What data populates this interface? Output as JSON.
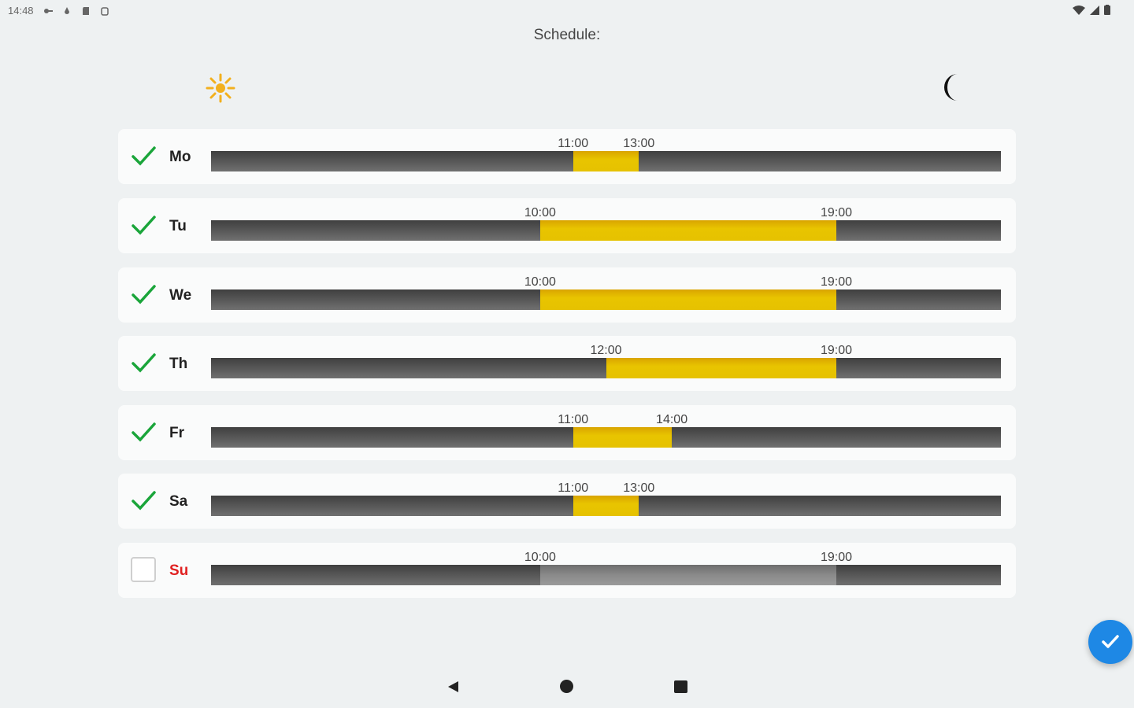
{
  "status_bar": {
    "time": "14:48",
    "left_icons": [
      "key-icon",
      "drop-icon",
      "sd-card-icon",
      "android-icon"
    ],
    "right_icons": [
      "wifi-icon",
      "cell-signal-icon",
      "battery-icon"
    ]
  },
  "title": "Schedule:",
  "header_icons": {
    "left": "sun-icon",
    "right": "moon-icon"
  },
  "colors": {
    "active": "#e6c200",
    "track": "#4a4a4a",
    "check": "#1aa53a",
    "disabled_day": "#e02020",
    "fab": "#1e88e5"
  },
  "days": [
    {
      "label": "Mo",
      "enabled": true,
      "start": "11:00",
      "end": "13:00"
    },
    {
      "label": "Tu",
      "enabled": true,
      "start": "10:00",
      "end": "19:00"
    },
    {
      "label": "We",
      "enabled": true,
      "start": "10:00",
      "end": "19:00"
    },
    {
      "label": "Th",
      "enabled": true,
      "start": "12:00",
      "end": "19:00"
    },
    {
      "label": "Fr",
      "enabled": true,
      "start": "11:00",
      "end": "14:00"
    },
    {
      "label": "Sa",
      "enabled": true,
      "start": "11:00",
      "end": "13:00"
    },
    {
      "label": "Su",
      "enabled": false,
      "start": "10:00",
      "end": "19:00"
    }
  ],
  "fab": {
    "icon": "checkmark-icon"
  },
  "nav": {
    "back": "back-icon",
    "home": "home-icon",
    "recents": "recents-icon"
  }
}
